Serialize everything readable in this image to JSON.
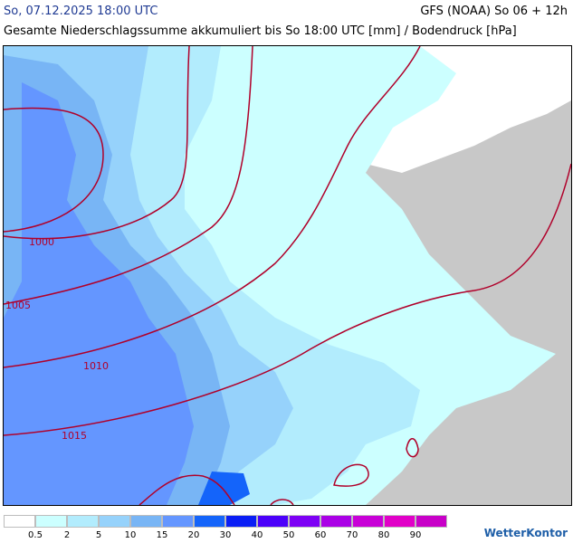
{
  "header": {
    "date": "So, 07.12.2025 18:00 UTC",
    "model": "GFS (NOAA) So 06 + 12h",
    "subtitle": "Gesamte Niederschlagssumme akkumuliert bis So 18:00 UTC [mm] / Bodendruck [hPa]"
  },
  "isobars": [
    "1000",
    "1005",
    "1010",
    "1015"
  ],
  "legend": {
    "colors": [
      "#ffffff",
      "#ccffff",
      "#b2ecfd",
      "#96d2fb",
      "#78b5f5",
      "#6496ff",
      "#1464fa",
      "#0a1ef5",
      "#4b00fa",
      "#7d00f5",
      "#aa00e6",
      "#c800d7",
      "#e100c8",
      "#c800c8"
    ],
    "labels": [
      "0.5",
      "2",
      "5",
      "10",
      "15",
      "20",
      "30",
      "40",
      "50",
      "60",
      "70",
      "80",
      "90"
    ]
  },
  "brand": {
    "logo": "WetterKontor"
  }
}
